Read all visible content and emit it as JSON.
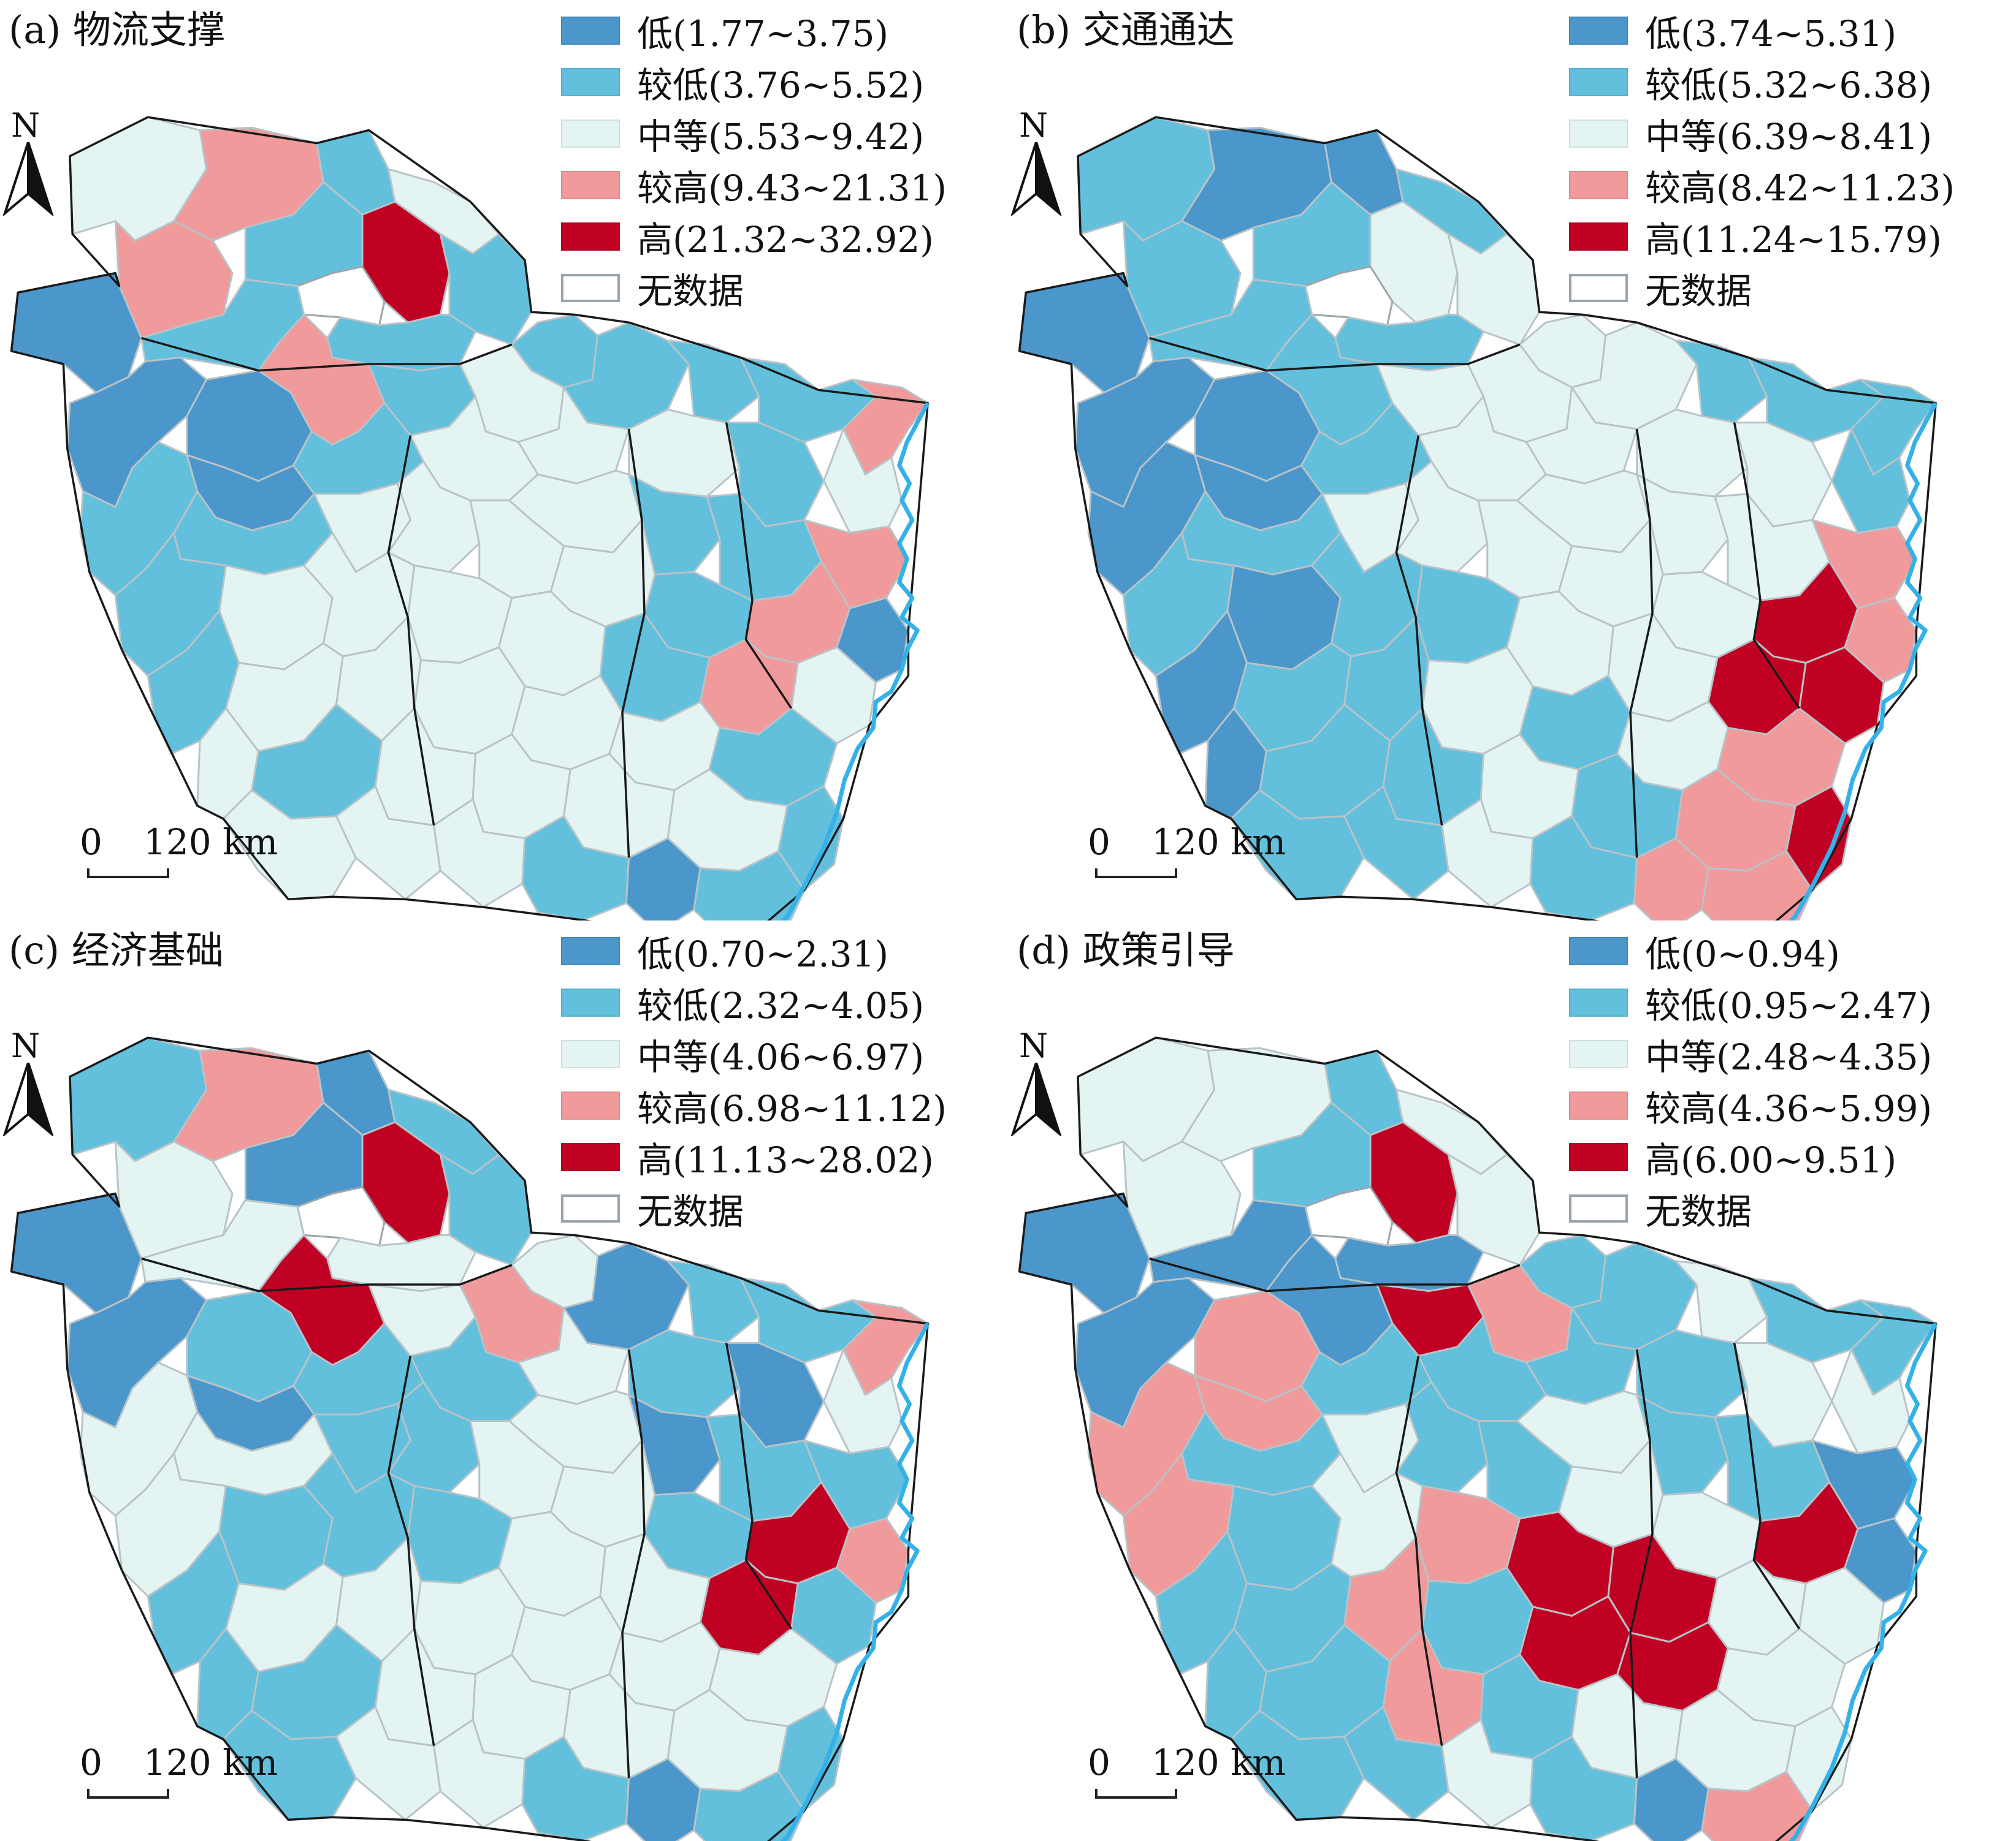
{
  "colors": {
    "low": "#4b96cb",
    "lower": "#62c0dc",
    "medium": "#e3f4f3",
    "higher": "#f19a9b",
    "high": "#c10124",
    "nodata": "#ffffff",
    "nodata_border": "#9aa5aa",
    "coast": "#35b1ea",
    "internal_border": "#b8c3c8",
    "outer_border": "#1a1a1a"
  },
  "north_label": "N",
  "scale": {
    "zero": "0",
    "distance": "120 km"
  },
  "panels": [
    {
      "title": "(a) 物流支撑",
      "legend": [
        {
          "label": "低(1.77~3.75)",
          "class": "low"
        },
        {
          "label": "较低(3.76~5.52)",
          "class": "lower"
        },
        {
          "label": "中等(5.53~9.42)",
          "class": "medium"
        },
        {
          "label": "较高(9.43~21.31)",
          "class": "higher"
        },
        {
          "label": "高(21.32~32.92)",
          "class": "high"
        },
        {
          "label": "无数据",
          "class": "nodata"
        }
      ]
    },
    {
      "title": "(b) 交通通达",
      "legend": [
        {
          "label": "低(3.74~5.31)",
          "class": "low"
        },
        {
          "label": "较低(5.32~6.38)",
          "class": "lower"
        },
        {
          "label": "中等(6.39~8.41)",
          "class": "medium"
        },
        {
          "label": "较高(8.42~11.23)",
          "class": "higher"
        },
        {
          "label": "高(11.24~15.79)",
          "class": "high"
        },
        {
          "label": "无数据",
          "class": "nodata"
        }
      ]
    },
    {
      "title": "(c) 经济基础",
      "legend": [
        {
          "label": "低(0.70~2.31)",
          "class": "low"
        },
        {
          "label": "较低(2.32~4.05)",
          "class": "lower"
        },
        {
          "label": "中等(4.06~6.97)",
          "class": "medium"
        },
        {
          "label": "较高(6.98~11.12)",
          "class": "higher"
        },
        {
          "label": "高(11.13~28.02)",
          "class": "high"
        },
        {
          "label": "无数据",
          "class": "nodata"
        }
      ]
    },
    {
      "title": "(d) 政策引导",
      "legend": [
        {
          "label": "低(0~0.94)",
          "class": "low"
        },
        {
          "label": "较低(0.95~2.47)",
          "class": "lower"
        },
        {
          "label": "中等(2.48~4.35)",
          "class": "medium"
        },
        {
          "label": "较高(4.36~5.99)",
          "class": "higher"
        },
        {
          "label": "高(6.00~9.51)",
          "class": "high"
        },
        {
          "label": "无数据",
          "class": "nodata"
        }
      ]
    }
  ]
}
